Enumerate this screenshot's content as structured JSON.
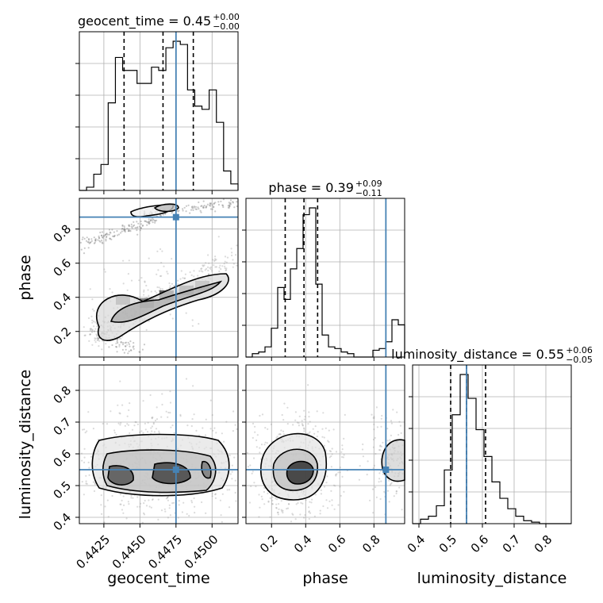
{
  "chart_data": {
    "type": "corner",
    "parameters": [
      "geocent_time",
      "phase",
      "luminosity_distance"
    ],
    "truth": {
      "geocent_time": 0.4475,
      "phase": 0.87,
      "luminosity_distance": 0.55
    },
    "titles": [
      {
        "param": "geocent_time",
        "name": "geocent_time",
        "median": "0.45",
        "plus": "+0.00",
        "minus": "−0.00"
      },
      {
        "param": "phase",
        "name": "phase",
        "median": "0.39",
        "plus": "+0.09",
        "minus": "−0.11"
      },
      {
        "param": "luminosity_distance",
        "name": "luminosity_distance",
        "median": "0.55",
        "plus": "+0.06",
        "minus": "−0.05"
      }
    ],
    "axes": {
      "geocent_time": {
        "range": [
          0.4408,
          0.4518
        ],
        "ticks": [
          "0.4425",
          "0.4450",
          "0.4475",
          "0.4500"
        ]
      },
      "phase": {
        "range": [
          0.05,
          0.98
        ],
        "ticks": [
          "0.2",
          "0.4",
          "0.6",
          "0.8"
        ]
      },
      "luminosity_distance": {
        "range": [
          0.38,
          0.88
        ],
        "ticks": [
          "0.4",
          "0.5",
          "0.6",
          "0.7",
          "0.8"
        ]
      }
    },
    "axis_labels": {
      "x": [
        "geocent_time",
        "phase",
        "luminosity_distance"
      ],
      "y": [
        "phase",
        "luminosity_distance"
      ]
    },
    "histograms": {
      "geocent_time": {
        "edges_range": [
          0.4408,
          0.4518
        ],
        "counts": [
          0,
          1,
          5,
          8,
          27,
          41,
          37,
          37,
          33,
          33,
          38,
          37,
          44,
          46,
          45,
          31,
          26,
          25,
          31,
          21,
          6,
          2
        ]
      },
      "phase": {
        "edges_range": [
          0.05,
          0.98
        ],
        "counts": [
          0,
          2,
          3,
          6,
          17,
          41,
          34,
          52,
          64,
          84,
          88,
          43,
          13,
          6,
          5,
          3,
          2,
          0,
          0,
          0,
          4,
          5,
          9,
          22,
          19
        ]
      },
      "luminosity_distance": {
        "edges_range": [
          0.38,
          0.88
        ],
        "counts": [
          0,
          3,
          5,
          12,
          36,
          73,
          100,
          84,
          63,
          45,
          28,
          17,
          10,
          5,
          2,
          1,
          0,
          0,
          0,
          0
        ]
      }
    },
    "quantiles": {
      "geocent_time": [
        0.4439,
        0.4466,
        0.4487
      ],
      "phase": [
        0.28,
        0.39,
        0.47
      ],
      "luminosity_distance": [
        0.5,
        0.55,
        0.61
      ]
    },
    "grid": true
  }
}
